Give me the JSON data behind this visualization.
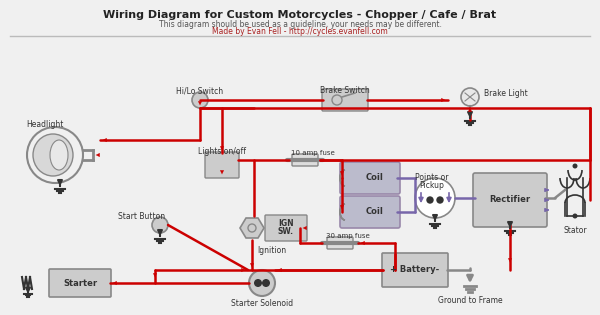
{
  "title": "Wiring Diagram for Custom Motorcycles - Chopper / Cafe / Brat",
  "subtitle1": "This diagram should be used as a guideline, your needs may be different.",
  "subtitle2": "Made by Evan Fell - http://cycles.evanfell.com",
  "bg_color": "#f0f0f0",
  "title_color": "#222222",
  "subtitle_color": "#555555",
  "link_color": "#aa2222",
  "wire_red": "#cc0000",
  "wire_dark": "#333333",
  "wire_purple": "#7766aa",
  "wire_gray": "#888888",
  "component_fill": "#cccccc",
  "component_edge": "#888888",
  "box_fill": "#dddddd",
  "box_edge": "#999999"
}
